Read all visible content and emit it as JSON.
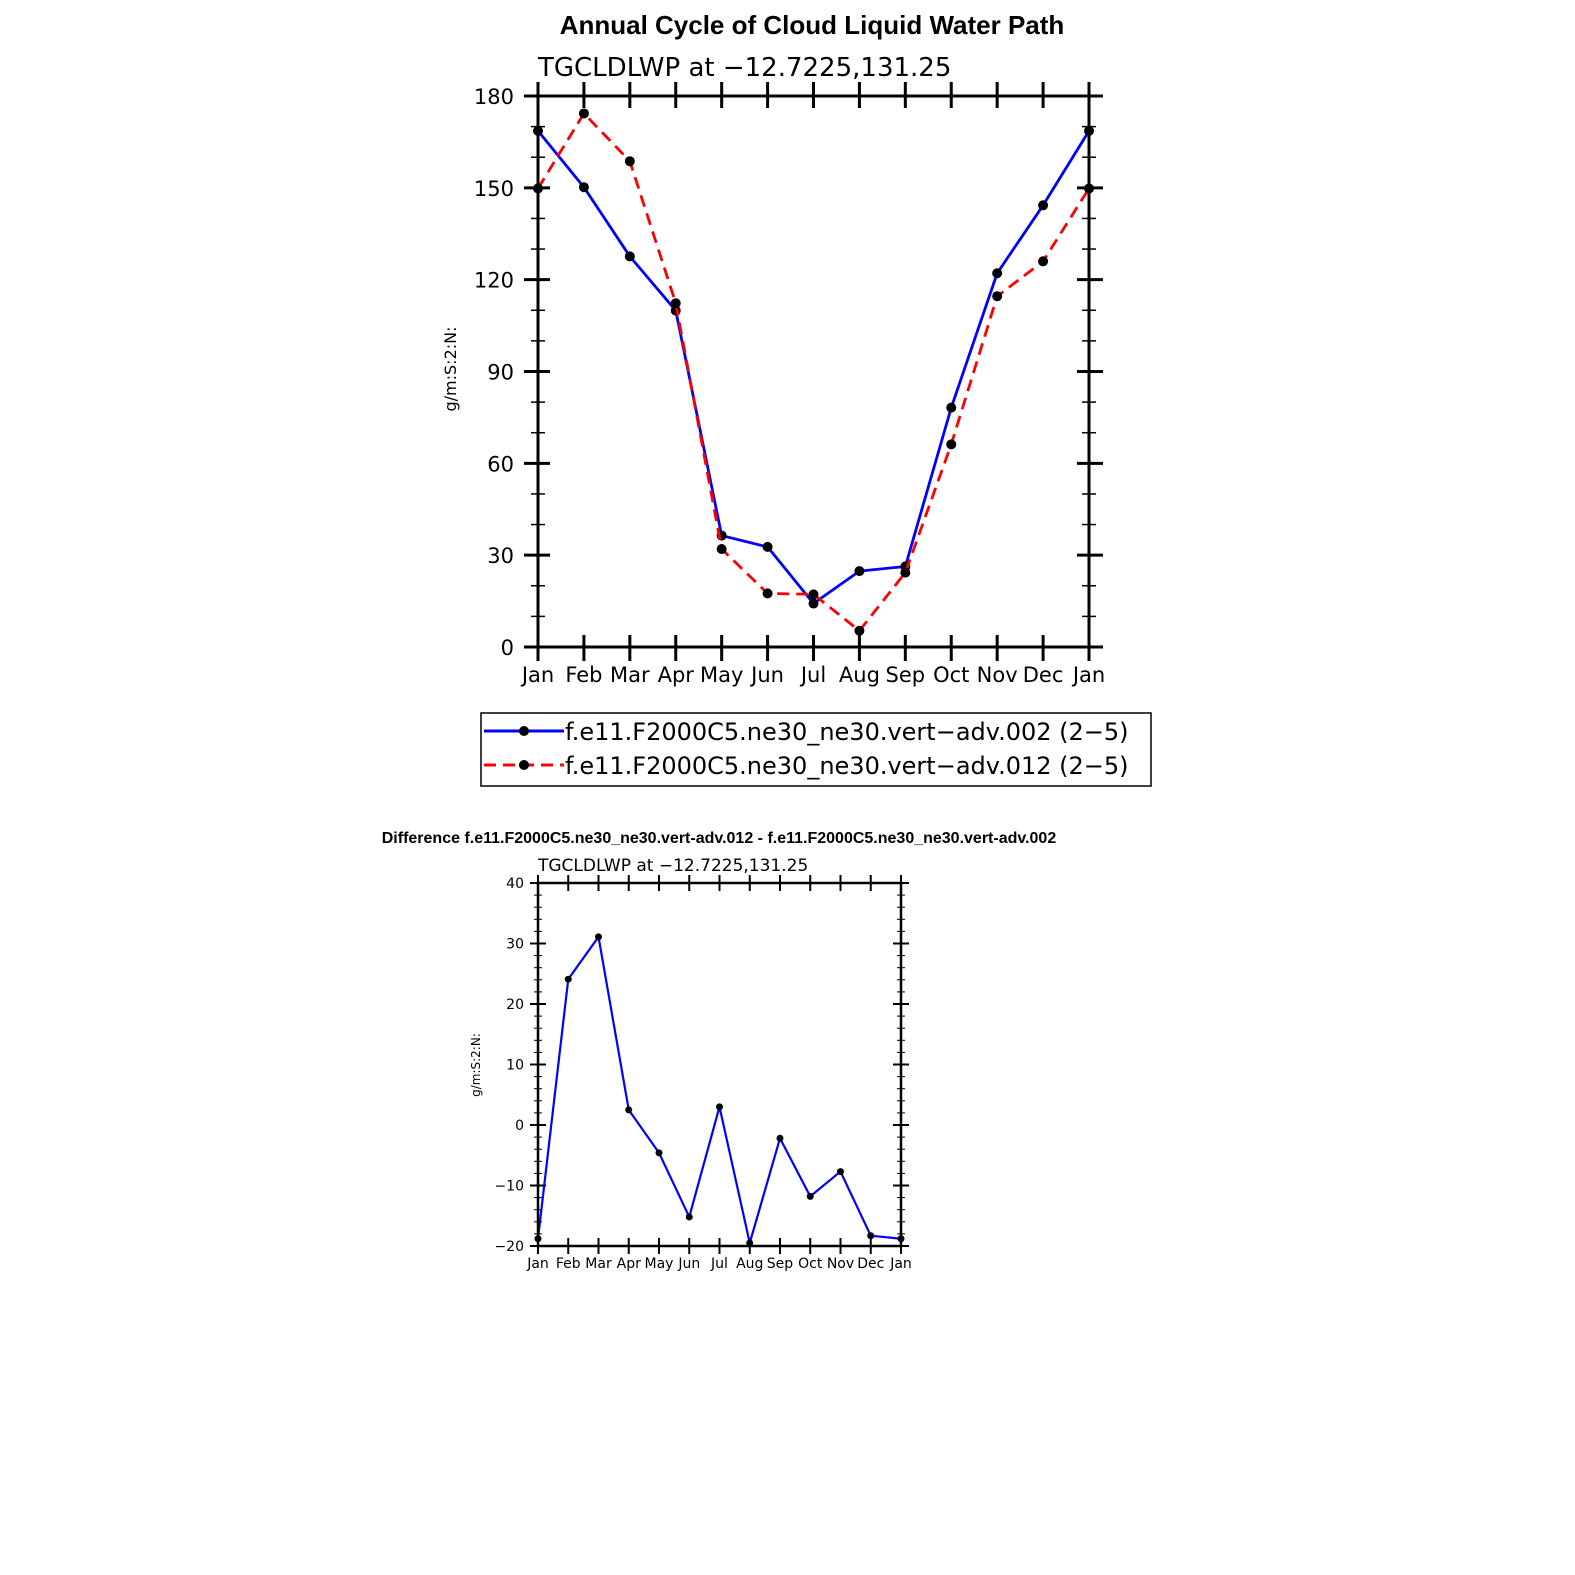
{
  "chart_data": [
    {
      "type": "line",
      "title": "Annual Cycle of Cloud Liquid Water Path",
      "subtitle": "TGCLDLWP  at  −12.7225,131.25",
      "ylabel": "g/m:S:2:N:",
      "xlabel": "",
      "categories": [
        "Jan",
        "Feb",
        "Mar",
        "Apr",
        "May",
        "Jun",
        "Jul",
        "Aug",
        "Sep",
        "Oct",
        "Nov",
        "Dec",
        "Jan"
      ],
      "yticks": [
        "0",
        "30",
        "60",
        "90",
        "120",
        "150",
        "180"
      ],
      "ylim": [
        0,
        180
      ],
      "series": [
        {
          "name": "f.e11.F2000C5.ne30_ne30.vert−adv.002 (2−5)",
          "color": "#0000ff",
          "dash": "solid",
          "values": [
            168.6,
            150.2,
            127.6,
            109.9,
            36.4,
            32.7,
            14.2,
            24.8,
            26.3,
            78.2,
            122.1,
            144.3,
            168.6
          ]
        },
        {
          "name": "f.e11.F2000C5.ne30_ne30.vert−adv.012 (2−5)",
          "color": "#ff0000",
          "dash": "dashed",
          "values": [
            149.8,
            174.3,
            158.7,
            112.3,
            32.0,
            17.5,
            17.2,
            5.3,
            24.3,
            66.2,
            114.6,
            126.0,
            149.8
          ]
        }
      ]
    },
    {
      "type": "line",
      "title": "Difference f.e11.F2000C5.ne30_ne30.vert-adv.012 - f.e11.F2000C5.ne30_ne30.vert-adv.002",
      "subtitle": "TGCLDLWP  at  −12.7225,131.25",
      "ylabel": "g/m:S:2:N:",
      "xlabel": "",
      "categories": [
        "Jan",
        "Feb",
        "Mar",
        "Apr",
        "May",
        "Jun",
        "Jul",
        "Aug",
        "Sep",
        "Oct",
        "Nov",
        "Dec",
        "Jan"
      ],
      "yticks": [
        "−20",
        "−10",
        "0",
        "10",
        "20",
        "30",
        "40"
      ],
      "ylim": [
        -20,
        40
      ],
      "series": [
        {
          "name": "difference",
          "color": "#0000ff",
          "dash": "solid",
          "values": [
            -18.8,
            24.1,
            31.1,
            2.5,
            -4.6,
            -15.2,
            3.0,
            -19.5,
            -2.2,
            -11.8,
            -7.7,
            -18.3,
            -18.8
          ]
        }
      ]
    }
  ]
}
